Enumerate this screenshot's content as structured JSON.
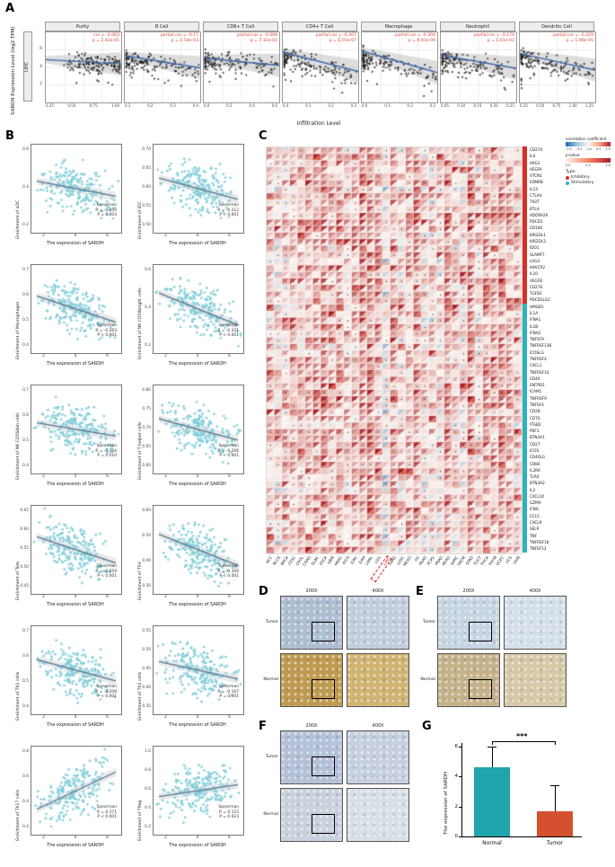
{
  "panel_labels": {
    "a": "A",
    "b": "B",
    "c": "C",
    "d": "D",
    "e": "E",
    "f": "F",
    "g": "G"
  },
  "render_seed": 20,
  "panel_a": {
    "ylabel": "SARDH Expression Level (log2 TPM)",
    "xlabel": "Infiltration Level",
    "facet": "LIHC",
    "yticks": [
      "6",
      "4",
      "2"
    ],
    "subplots": [
      {
        "title": "Purity",
        "stat1": "cor = -0.063",
        "stat2": "p = 2.42e-01",
        "trend": -0.06,
        "dist": "high",
        "xticks": [
          "0.25",
          "0.50",
          "0.75",
          "1.00"
        ]
      },
      {
        "title": "B Cell",
        "stat1": "partial.cor = -0.17",
        "stat2": "p = 1.54e-03",
        "trend": -0.17,
        "dist": "low",
        "xticks": [
          "0.1",
          "0.2",
          "0.3",
          "0.4"
        ]
      },
      {
        "title": "CD8+ T Cell",
        "stat1": "partial.cor = -0.098",
        "stat2": "p = 7.12e-02",
        "trend": -0.1,
        "dist": "low",
        "xticks": [
          "0.0",
          "0.2",
          "0.4",
          "0.6"
        ]
      },
      {
        "title": "CD4+ T Cell",
        "stat1": "partial.cor = -0.267",
        "stat2": "p = 5.01e-07",
        "trend": -0.27,
        "dist": "low",
        "xticks": [
          "0.0",
          "0.1",
          "0.2",
          "0.3"
        ]
      },
      {
        "title": "Macrophage",
        "stat1": "partial.cor = -0.304",
        "stat2": "p = 9.91e-09",
        "trend": -0.3,
        "dist": "low",
        "xticks": [
          "0.0",
          "0.1",
          "0.2",
          "0.3"
        ]
      },
      {
        "title": "Neutrophil",
        "stat1": "partial.cor = -0.176",
        "stat2": "p = 1.01e-03",
        "trend": -0.18,
        "dist": "low",
        "xticks": [
          "0.05",
          "0.10",
          "0.15",
          "0.20",
          "0.25"
        ]
      },
      {
        "title": "Dendritic Cell",
        "stat1": "partial.cor = -0.229",
        "stat2": "p = 1.96e-05",
        "trend": -0.23,
        "dist": "low",
        "xticks": [
          "0.25",
          "0.50",
          "0.75",
          "1.00",
          "1.25"
        ]
      }
    ]
  },
  "panel_b": {
    "xlabel": "The expression of SARDH",
    "xticks": [
      "2",
      "4",
      "6"
    ],
    "stat_label": "Spearman",
    "point_color": "#7fcdd9",
    "subplots": [
      {
        "ylabel": "Enrichment of aDC",
        "r": "R = -0.150",
        "p": "P = 0.003",
        "trend": -0.15,
        "yticks": [
          "0.6",
          "0.4",
          "0.2"
        ]
      },
      {
        "ylabel": "Enrichment of iDC",
        "r": "R = -0.212",
        "p": "P < 0.001",
        "trend": -0.21,
        "yticks": [
          "0.70",
          "0.65",
          "0.60",
          "0.55",
          "0.50"
        ]
      },
      {
        "ylabel": "Enrichment of Macrophages",
        "r": "R = -0.263",
        "p": "P < 0.001",
        "trend": -0.26,
        "yticks": [
          "0.7",
          "0.6",
          "0.5",
          "0.4"
        ]
      },
      {
        "ylabel": "Enrichment of NK CD56bright cells",
        "r": "R = -0.321",
        "p": "P < 0.001",
        "trend": -0.32,
        "yticks": [
          "0.6",
          "0.4",
          "0.2"
        ]
      },
      {
        "ylabel": "Enrichment of NK CD56dim cells",
        "r": "R = -0.134",
        "p": "P = 0.010",
        "trend": -0.13,
        "yticks": [
          "0.7",
          "0.6",
          "0.5",
          "0.4"
        ]
      },
      {
        "ylabel": "Enrichment of T helper cells",
        "r": "R = -0.206",
        "p": "P < 0.001",
        "trend": -0.21,
        "yticks": [
          "0.80",
          "0.75",
          "0.70",
          "0.65",
          "0.60"
        ]
      },
      {
        "ylabel": "Enrichment of Tem",
        "r": "R = -0.259",
        "p": "P < 0.001",
        "trend": -0.26,
        "yticks": [
          "0.65",
          "0.60",
          "0.55",
          "0.50",
          "0.45"
        ]
      },
      {
        "ylabel": "Enrichment of TFH",
        "r": "R = -0.306",
        "p": "P < 0.001",
        "trend": -0.31,
        "yticks": [
          "0.60",
          "0.50",
          "0.40",
          "0.30"
        ]
      },
      {
        "ylabel": "Enrichment of Th1 cells",
        "r": "R = -0.208",
        "p": "P < 0.001",
        "trend": -0.21,
        "yticks": [
          "0.7",
          "0.6",
          "0.5",
          "0.4"
        ]
      },
      {
        "ylabel": "Enrichment of Th2 cells",
        "r": "R = -0.167",
        "p": "P = 0.001",
        "trend": -0.17,
        "yticks": [
          "0.55",
          "0.50",
          "0.45",
          "0.40",
          "0.35"
        ]
      },
      {
        "ylabel": "Enrichment of Th17 cells",
        "r": "R = 0.371",
        "p": "P < 0.001",
        "trend": 0.37,
        "yticks": [
          "0.8",
          "0.6",
          "0.4",
          "0.2"
        ]
      },
      {
        "ylabel": "Enrichment of TReg",
        "r": "R = 0.123",
        "p": "P = 0.023",
        "trend": 0.12,
        "yticks": [
          "1.0",
          "0.8",
          "0.6",
          "0.4",
          "0.2"
        ]
      }
    ]
  },
  "panel_c": {
    "legend": {
      "scale_label": "correlation coefficient",
      "scale_ticks": [
        "-1.0",
        "-0.5",
        "0.0",
        "0.5",
        "1.0"
      ],
      "pvalue_label": "p-value",
      "pvalue_ticks": [
        "0.0",
        "0.5",
        "1.0"
      ],
      "type_label": "Type:",
      "types": [
        {
          "label": "Inhibitory",
          "color": "#d73027"
        },
        {
          "label": "Stimulatory",
          "color": "#2db3bd"
        }
      ]
    },
    "highlight": "LIHC",
    "cancers": [
      "ACC",
      "BLCA",
      "BRCA",
      "CESC",
      "CHOL",
      "COAD",
      "DLBC",
      "ESCA",
      "GBM",
      "HNSC",
      "KICH",
      "KIRC",
      "KIRP",
      "LAML",
      "LGG",
      "LIHC",
      "LUAD",
      "LUSC",
      "MESO",
      "OV",
      "PAAD",
      "PCPG",
      "PRAD",
      "READ",
      "SARC",
      "SKCM",
      "STAD",
      "TGCT",
      "THCA",
      "THYM",
      "UCEC",
      "UCS",
      "UVM"
    ],
    "inhibitory_genes": [
      "CD274",
      "IL4",
      "ARG1",
      "VEGFA",
      "VTCN1",
      "EDNRB",
      "IL13",
      "CTLA4",
      "TIGIT",
      "BTLA",
      "ADORA2A",
      "PDCD1",
      "CD160",
      "KIR2DL1",
      "KIR2DL3",
      "IDO1",
      "SLAMF7",
      "LAG3",
      "HAVCR2",
      "IL10",
      "VEGFB",
      "CD276",
      "TGFB1",
      "PDCD1LG2"
    ],
    "stimulatory_genes": [
      "HMGB1",
      "IL1A",
      "IFNA1",
      "IL1B",
      "IFNA2",
      "TNFSF9",
      "TNFRSF13B",
      "ICOSLG",
      "TNFRSF4",
      "CXCL1",
      "TNFRSF14",
      "CD40",
      "ENTPD1",
      "ICAM1",
      "TNFRSF9",
      "TNFSF4",
      "CD28",
      "CD70",
      "ITGB2",
      "PRF1",
      "BTN3A1",
      "CD27",
      "ICOS",
      "CD40LG",
      "CD80",
      "IL2RA",
      "TLR4",
      "BTN3A2",
      "IL2",
      "CXCL10",
      "GZMA",
      "IFNG",
      "CCL5",
      "CXCL9",
      "SELP",
      "TNF",
      "TNFRSF18",
      "TNFSF13"
    ]
  },
  "panel_d": {
    "magnifications": [
      "200X",
      "400X"
    ],
    "rows": [
      {
        "label": "Tumor",
        "colors": [
          "#aebdd1",
          "#c2cddd"
        ]
      },
      {
        "label": "Normal",
        "colors": [
          "#bf9a50",
          "#d1b372"
        ]
      }
    ]
  },
  "panel_e": {
    "magnifications": [
      "200X",
      "400X"
    ],
    "rows": [
      {
        "label": "Tumor",
        "colors": [
          "#c7d5e3",
          "#d4dfe9"
        ]
      },
      {
        "label": "Normal",
        "colors": [
          "#c6b28a",
          "#d6c8a8"
        ]
      }
    ]
  },
  "panel_f": {
    "magnifications": [
      "200X",
      "400X"
    ],
    "rows": [
      {
        "label": "Tumor",
        "colors": [
          "#b4c1d8",
          "#c6cfe0"
        ]
      },
      {
        "label": "Normal",
        "colors": [
          "#c9d2dc",
          "#d8dfe6"
        ]
      }
    ]
  },
  "panel_g": {
    "chart_data": {
      "type": "bar",
      "categories": [
        "Normal",
        "Tumor"
      ],
      "values": [
        4.6,
        1.7
      ],
      "errors": [
        1.4,
        1.7
      ],
      "colors": [
        "#1fa5ab",
        "#d4502e"
      ],
      "ylabel": "The expression of SARDH",
      "ylim": [
        0,
        6
      ],
      "yticks": [
        0,
        2,
        4,
        6
      ],
      "significance": "***"
    }
  },
  "chart_data": [
    {
      "panel": "A",
      "type": "scatter",
      "title": "TIMER correlation of SARDH with immune infiltration (LIHC)",
      "xlabel": "Infiltration Level",
      "ylabel": "SARDH Expression Level (log2 TPM)",
      "series": [
        {
          "name": "Purity",
          "cor": -0.063,
          "p": "2.42e-01"
        },
        {
          "name": "B Cell",
          "cor": -0.17,
          "p": "1.54e-03"
        },
        {
          "name": "CD8+ T Cell",
          "cor": -0.098,
          "p": "7.12e-02"
        },
        {
          "name": "CD4+ T Cell",
          "cor": -0.267,
          "p": "5.01e-07"
        },
        {
          "name": "Macrophage",
          "cor": -0.304,
          "p": "9.91e-09"
        },
        {
          "name": "Neutrophil",
          "cor": -0.176,
          "p": "1.01e-03"
        },
        {
          "name": "Dendritic Cell",
          "cor": -0.229,
          "p": "1.96e-05"
        }
      ]
    },
    {
      "panel": "B",
      "type": "scatter",
      "xlabel": "The expression of SARDH",
      "series": [
        {
          "name": "aDC",
          "R": -0.15,
          "P": "0.003"
        },
        {
          "name": "iDC",
          "R": -0.212,
          "P": "<0.001"
        },
        {
          "name": "Macrophages",
          "R": -0.263,
          "P": "<0.001"
        },
        {
          "name": "NK CD56bright cells",
          "R": -0.321,
          "P": "<0.001"
        },
        {
          "name": "NK CD56dim cells",
          "R": -0.134,
          "P": "0.010"
        },
        {
          "name": "T helper cells",
          "R": -0.206,
          "P": "<0.001"
        },
        {
          "name": "Tem",
          "R": -0.259,
          "P": "<0.001"
        },
        {
          "name": "TFH",
          "R": -0.306,
          "P": "<0.001"
        },
        {
          "name": "Th1 cells",
          "R": -0.208,
          "P": "<0.001"
        },
        {
          "name": "Th2 cells",
          "R": -0.167,
          "P": "0.001"
        },
        {
          "name": "Th17 cells",
          "R": 0.371,
          "P": "<0.001"
        },
        {
          "name": "TReg",
          "R": 0.123,
          "P": "0.023"
        }
      ]
    },
    {
      "panel": "C",
      "type": "heatmap",
      "rows": "immunomodulator genes (panel_c.inhibitory_genes + panel_c.stimulatory_genes)",
      "cols": "TCGA cancer types (panel_c.cancers)",
      "color_scale": {
        "label": "correlation coefficient",
        "range": [
          -1,
          1
        ]
      },
      "highlighted_column": "LIHC"
    },
    {
      "panel": "G",
      "type": "bar",
      "categories": [
        "Normal",
        "Tumor"
      ],
      "values": [
        4.6,
        1.7
      ],
      "errors": [
        1.4,
        1.7
      ],
      "ylabel": "The expression of SARDH",
      "ylim": [
        0,
        6
      ],
      "significance": "***"
    }
  ]
}
